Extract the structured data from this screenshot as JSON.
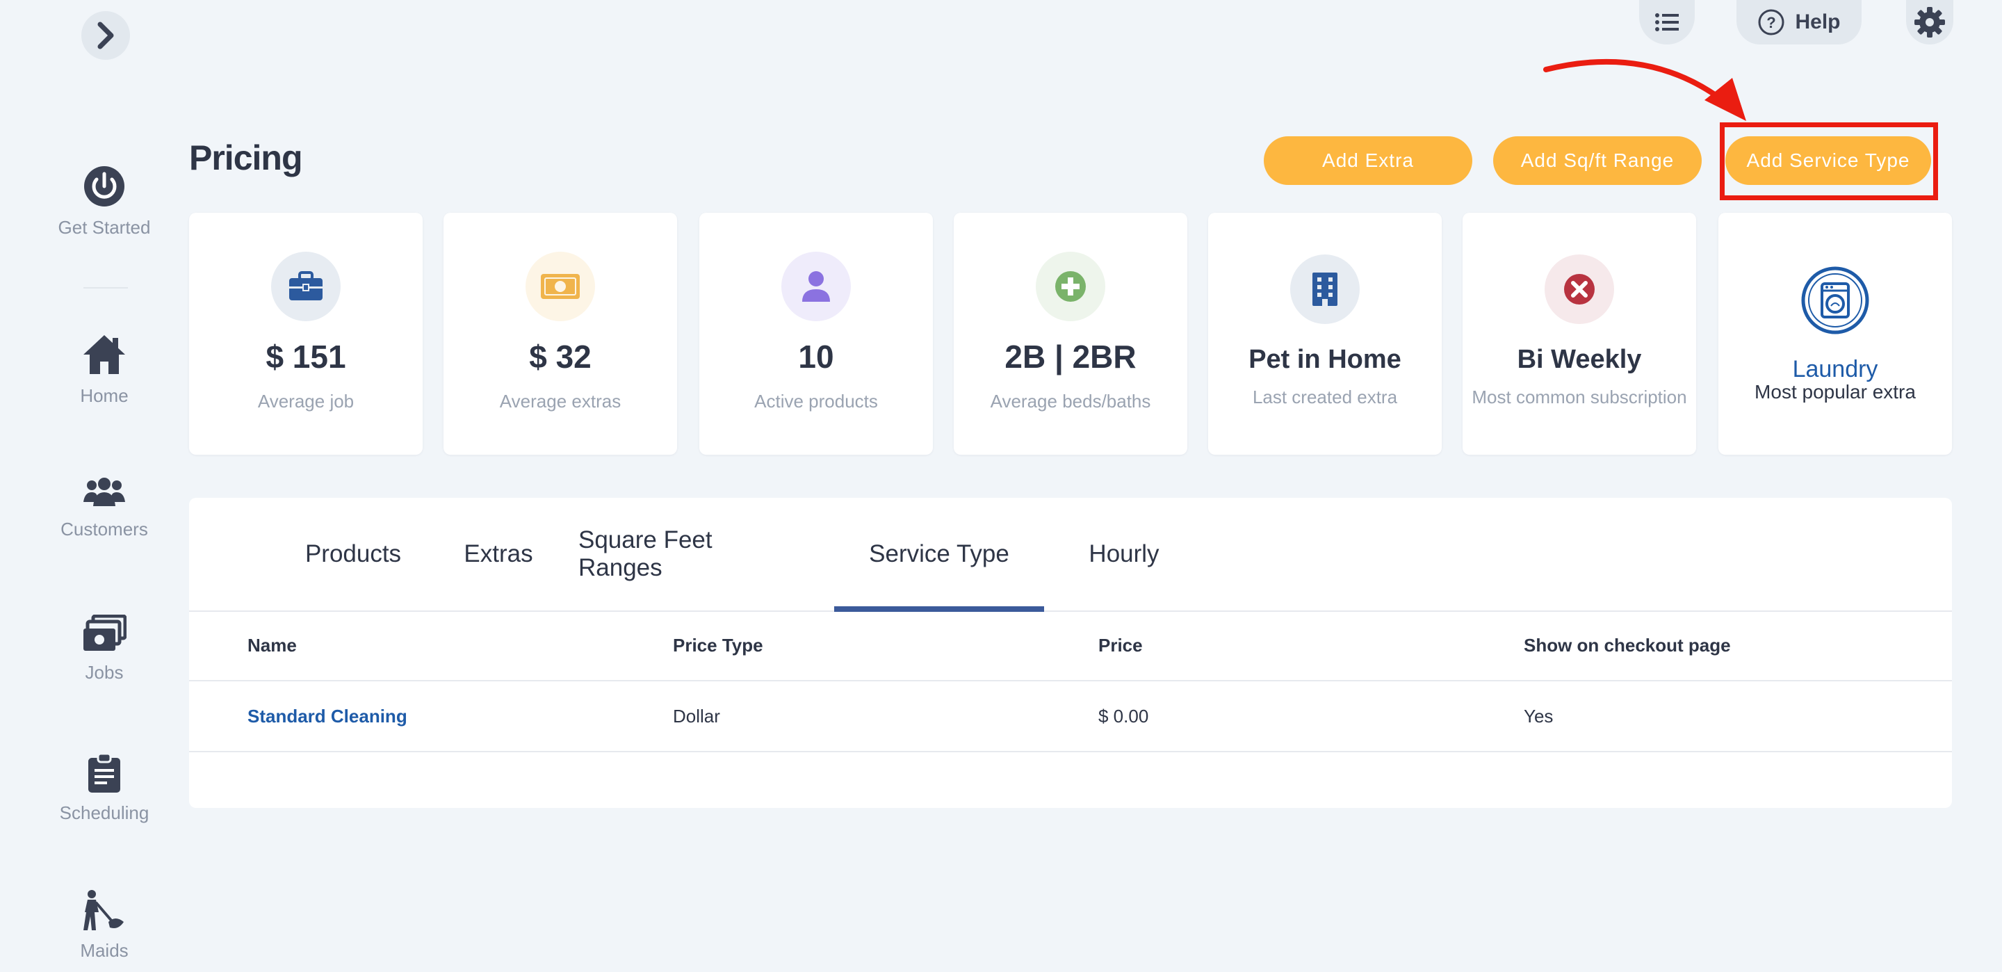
{
  "page": {
    "title": "Pricing"
  },
  "sidebar": {
    "items": [
      {
        "label": "Get Started",
        "icon": "power-icon"
      },
      {
        "label": "Home",
        "icon": "home-icon"
      },
      {
        "label": "Customers",
        "icon": "customers-icon"
      },
      {
        "label": "Jobs",
        "icon": "jobs-icon"
      },
      {
        "label": "Scheduling",
        "icon": "clipboard-icon"
      },
      {
        "label": "Maids",
        "icon": "maid-icon"
      }
    ]
  },
  "topbar": {
    "help_label": "Help"
  },
  "actions": {
    "add_extra": "Add Extra",
    "add_sqft_range": "Add Sq/ft Range",
    "add_service_type": "Add Service Type"
  },
  "stats": [
    {
      "value": "$ 151",
      "caption": "Average job",
      "icon": "briefcase-icon",
      "color": "#2c5a9e"
    },
    {
      "value": "$ 32",
      "caption": "Average extras",
      "icon": "money-icon",
      "color": "#f0b44c"
    },
    {
      "value": "10",
      "caption": "Active products",
      "icon": "person-icon",
      "color": "#8b72e0"
    },
    {
      "value": "2B | 2BR",
      "caption": "Average beds/baths",
      "icon": "plus-icon",
      "color": "#7ab36a"
    },
    {
      "value": "Pet in Home",
      "caption": "Last created extra",
      "icon": "building-icon",
      "color": "#2c5a9e"
    },
    {
      "value": "Bi Weekly",
      "caption": "Most common subscription",
      "icon": "close-icon",
      "color": "#b83340"
    },
    {
      "value": "Laundry",
      "caption": "Most popular extra",
      "icon": "washer-icon",
      "color": "#1e5ba8"
    }
  ],
  "tabs": [
    "Products",
    "Extras",
    "Square Feet Ranges",
    "Service Type",
    "Hourly"
  ],
  "active_tab": "Service Type",
  "table": {
    "headers": [
      "Name",
      "Price Type",
      "Price",
      "Show on checkout page"
    ],
    "rows": [
      [
        "Standard Cleaning",
        "Dollar",
        "$ 0.00",
        "Yes"
      ]
    ]
  }
}
